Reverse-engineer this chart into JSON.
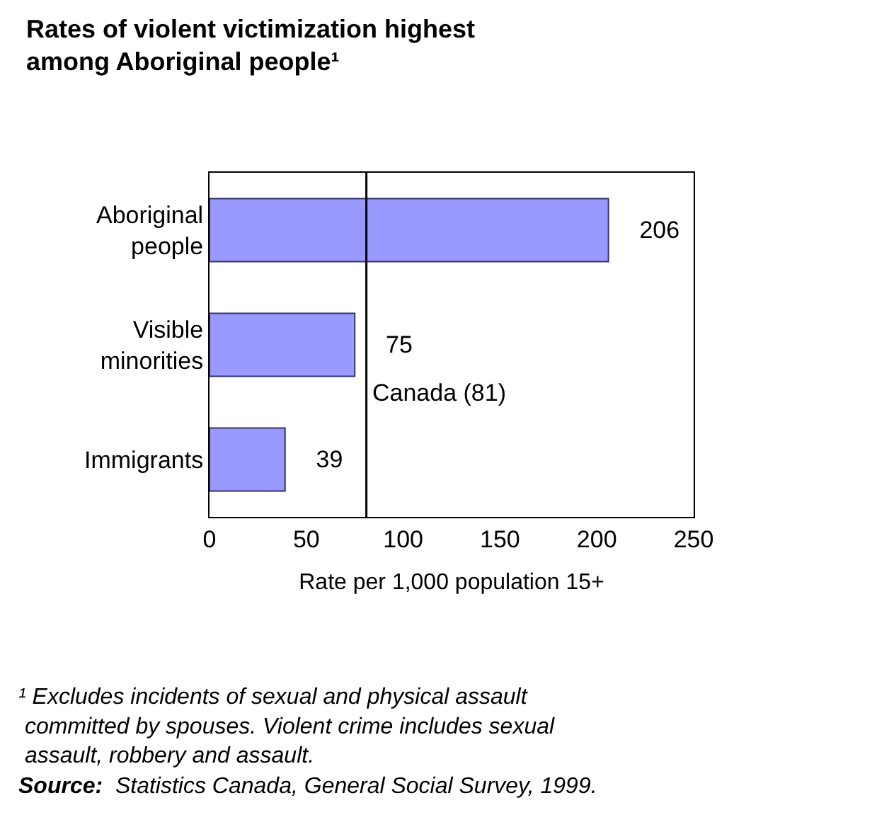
{
  "chart_data": {
    "type": "bar",
    "orientation": "horizontal",
    "title": "Rates of violent victimization highest among Aboriginal people¹",
    "categories": [
      "Aboriginal people",
      "Visible minorities",
      "Immigrants"
    ],
    "values": [
      206,
      75,
      39
    ],
    "color": "#9999ff",
    "data_labels": true,
    "xlim": [
      0,
      250
    ],
    "xticks": [
      0,
      50,
      100,
      150,
      200,
      250
    ],
    "xlabel": "Rate per 1,000 population 15+",
    "legend": false,
    "ref_lines": [
      {
        "axis": "x",
        "value": 81,
        "label": "Canada (81)",
        "color": "#000000",
        "line_style": "solid"
      }
    ],
    "annotations": [
      "¹ Excludes incidents of sexual and physical assault committed by spouses. Violent crime includes sexual assault, robbery and assault.",
      "Source: Statistics Canada, General Social Survey, 1999."
    ]
  }
}
